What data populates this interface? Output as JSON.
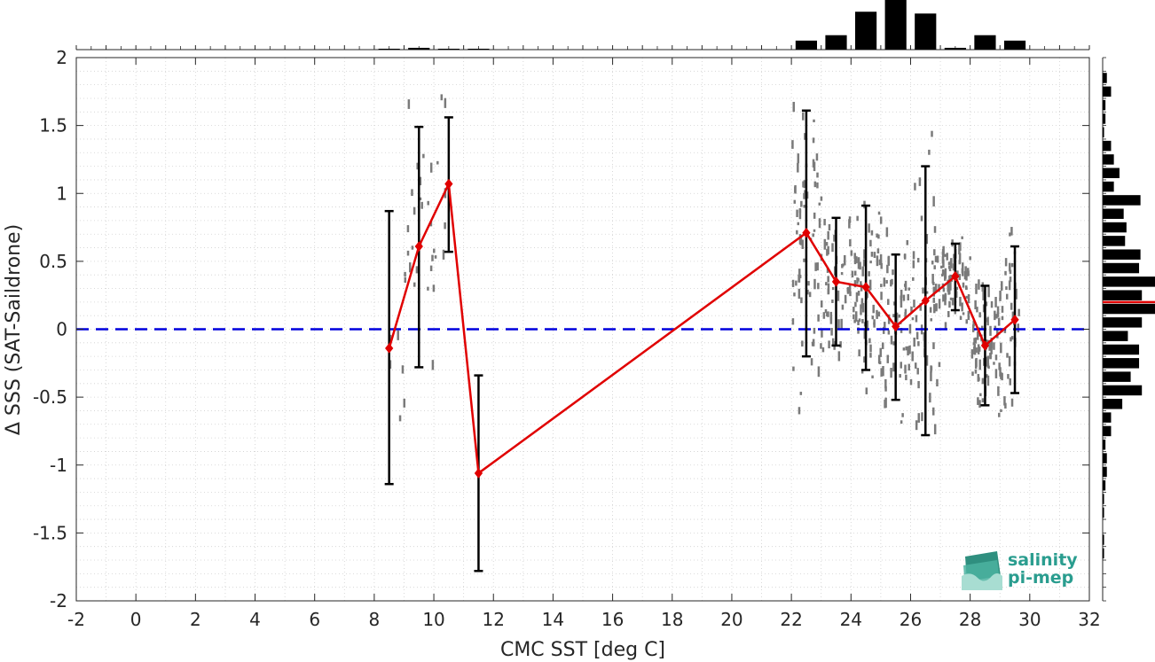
{
  "chart_data": {
    "type": "line",
    "xlabel": "CMC SST [deg C]",
    "ylabel": "Δ SSS (SAT-Saildrone)",
    "xlim": [
      -2,
      32
    ],
    "ylim": [
      -2,
      2
    ],
    "xticks": [
      "-2",
      "0",
      "2",
      "4",
      "6",
      "8",
      "10",
      "12",
      "14",
      "16",
      "18",
      "20",
      "22",
      "24",
      "26",
      "28",
      "30",
      "32"
    ],
    "yticks": [
      "2",
      "1.5",
      "1",
      "0.5",
      "0",
      "-0.5",
      "-1",
      "-1.5",
      "-2"
    ],
    "grid": "dotted",
    "zero_line": {
      "y": 0,
      "style": "dashed",
      "color": "#0000dd"
    },
    "series": [
      {
        "color": "#e00000",
        "marker": "diamond",
        "x": [
          8.5,
          9.5,
          10.5,
          11.5,
          22.5,
          23.5,
          24.5,
          25.5,
          26.5,
          27.5,
          28.5,
          29.5
        ],
        "y": [
          -0.14,
          0.61,
          1.07,
          -1.06,
          0.71,
          0.35,
          0.31,
          0.02,
          0.21,
          0.39,
          -0.12,
          0.07
        ],
        "err_low": [
          -1.14,
          -0.28,
          0.57,
          -1.78,
          -0.2,
          -0.12,
          -0.3,
          -0.52,
          -0.78,
          0.14,
          -0.56,
          -0.47
        ],
        "err_high": [
          0.87,
          1.49,
          1.56,
          -0.34,
          1.61,
          0.82,
          0.91,
          0.55,
          1.2,
          0.63,
          0.32,
          0.61
        ]
      }
    ],
    "error_bar_color": "#000000",
    "scatter_color": "#7a7a7a",
    "top_histogram": {
      "bin_centers": [
        8.5,
        9.5,
        10.5,
        11.5,
        22.5,
        23.5,
        24.5,
        25.5,
        26.5,
        27.5,
        28.5,
        29.5
      ],
      "counts": [
        1,
        2,
        1,
        1,
        10,
        16,
        42,
        55,
        40,
        2,
        16,
        10
      ]
    },
    "right_histogram": {
      "bin_centers": [
        1.85,
        1.75,
        1.65,
        1.55,
        1.45,
        1.35,
        1.25,
        1.15,
        1.05,
        0.95,
        0.85,
        0.75,
        0.65,
        0.55,
        0.45,
        0.35,
        0.25,
        0.15,
        0.05,
        -0.05,
        -0.15,
        -0.25,
        -0.35,
        -0.45,
        -0.55,
        -0.65,
        -0.75,
        -0.85,
        -0.95,
        -1.05,
        -1.15,
        -1.25,
        -1.35,
        -1.45,
        -1.55,
        -1.65,
        -1.75,
        -1.85
      ],
      "counts": [
        3,
        6,
        2,
        2,
        1,
        6,
        8,
        12,
        8,
        27,
        15,
        17,
        16,
        27,
        26,
        38,
        28,
        38,
        28,
        18,
        26,
        26,
        20,
        28,
        14,
        6,
        6,
        2,
        3,
        3,
        2,
        1,
        1,
        0,
        1,
        1,
        0,
        0
      ],
      "mean_line": {
        "y": 0.2,
        "color": "#e00000"
      }
    }
  },
  "logo": {
    "line1": "salinity",
    "line2": "pi-mep",
    "color": "#2a9d8f"
  }
}
